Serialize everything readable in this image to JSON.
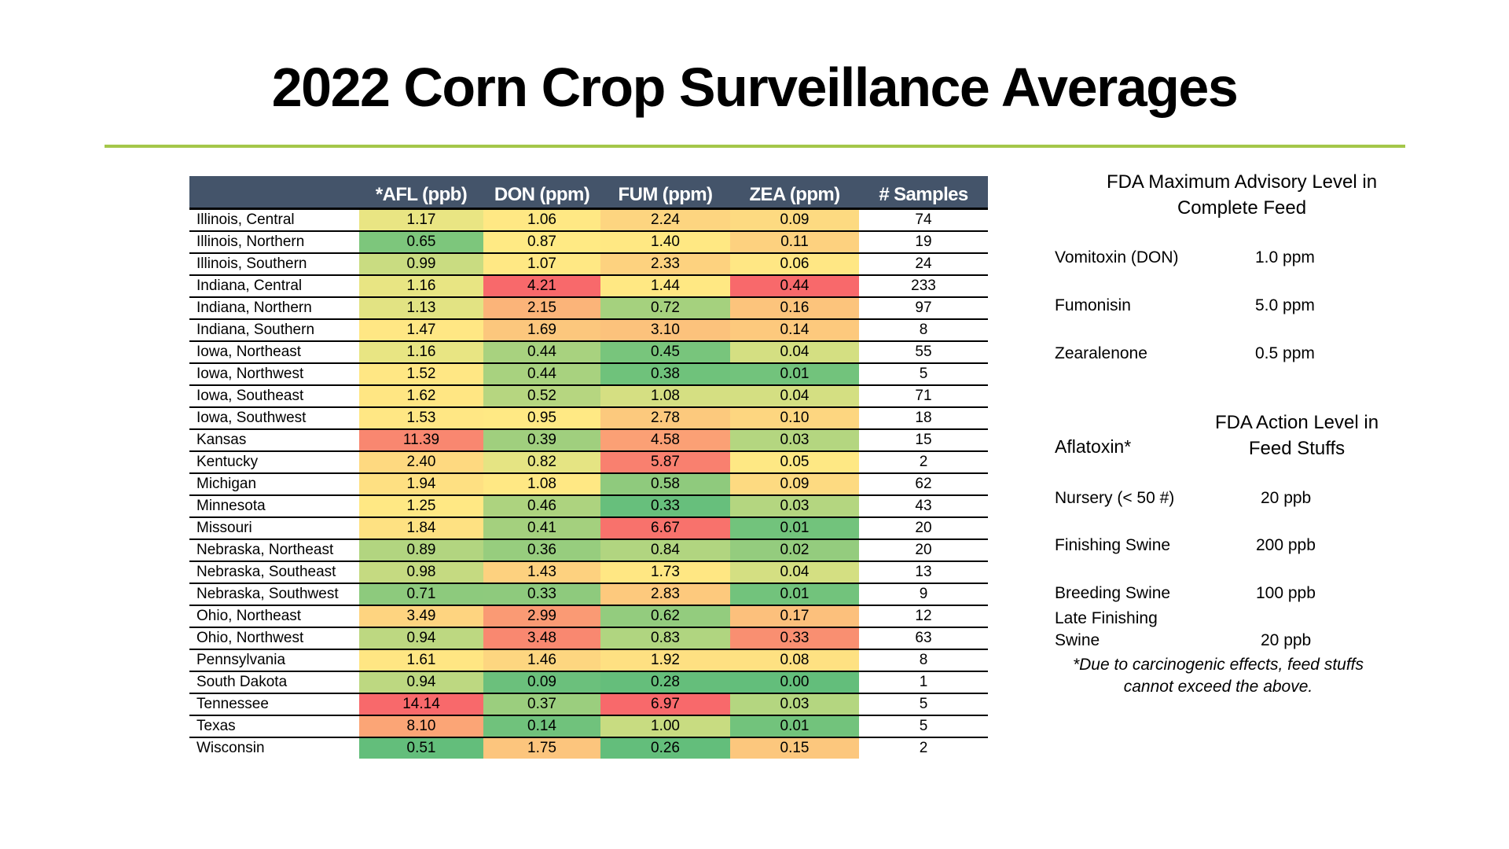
{
  "title": "2022 Corn Crop Surveillance Averages",
  "colors": {
    "accent_line": "#A4C74A",
    "header_bg": "#44546A"
  },
  "table": {
    "headers": [
      "",
      "*AFL (ppb)",
      "DON (ppm)",
      "FUM (ppm)",
      "ZEA (ppm)",
      "# Samples"
    ],
    "rows": [
      {
        "region": "Illinois, Central",
        "afl": "1.17",
        "don": "1.06",
        "fum": "2.24",
        "zea": "0.09",
        "samples": "74",
        "colors": [
          "#E9E583",
          "#FFE884",
          "#FDD580",
          "#FDDA81"
        ]
      },
      {
        "region": "Illinois, Northern",
        "afl": "0.65",
        "don": "0.87",
        "fum": "1.40",
        "zea": "0.11",
        "samples": "19",
        "colors": [
          "#7DC67C",
          "#FFEA84",
          "#FFE883",
          "#FDD17F"
        ]
      },
      {
        "region": "Illinois, Southern",
        "afl": "0.99",
        "don": "1.07",
        "fum": "2.33",
        "zea": "0.06",
        "samples": "24",
        "colors": [
          "#C9DC81",
          "#FFE884",
          "#FDD27F",
          "#FFE784"
        ]
      },
      {
        "region": "Indiana, Central",
        "afl": "1.16",
        "don": "4.21",
        "fum": "1.44",
        "zea": "0.44",
        "samples": "233",
        "colors": [
          "#E8E583",
          "#F8696B",
          "#FFE883",
          "#F8696B"
        ]
      },
      {
        "region": "Indiana, Northern",
        "afl": "1.13",
        "don": "2.15",
        "fum": "0.72",
        "zea": "0.16",
        "samples": "97",
        "colors": [
          "#E2E383",
          "#FBB479",
          "#A5D17E",
          "#FCC47C"
        ]
      },
      {
        "region": "Indiana, Southern",
        "afl": "1.47",
        "don": "1.69",
        "fum": "3.10",
        "zea": "0.14",
        "samples": "8",
        "colors": [
          "#FFE784",
          "#FCC77D",
          "#FCC27C",
          "#FDC97D"
        ]
      },
      {
        "region": "Iowa, Northeast",
        "afl": "1.16",
        "don": "0.44",
        "fum": "0.45",
        "zea": "0.04",
        "samples": "55",
        "colors": [
          "#E8E583",
          "#A8D27F",
          "#78C57C",
          "#D4DF82"
        ]
      },
      {
        "region": "Iowa, Northwest",
        "afl": "1.52",
        "don": "0.44",
        "fum": "0.38",
        "zea": "0.01",
        "samples": "5",
        "colors": [
          "#FFE784",
          "#A8D27F",
          "#6FC27B",
          "#72C37C"
        ]
      },
      {
        "region": "Iowa, Southeast",
        "afl": "1.62",
        "don": "0.52",
        "fum": "1.08",
        "zea": "0.04",
        "samples": "71",
        "colors": [
          "#FFE683",
          "#B6D680",
          "#D5DF82",
          "#D4DF82"
        ]
      },
      {
        "region": "Iowa, Southwest",
        "afl": "1.53",
        "don": "0.95",
        "fum": "2.78",
        "zea": "0.10",
        "samples": "18",
        "colors": [
          "#FFE784",
          "#FFE984",
          "#FCC97D",
          "#FDD680"
        ]
      },
      {
        "region": "Kansas",
        "afl": "11.39",
        "don": "0.39",
        "fum": "4.58",
        "zea": "0.03",
        "samples": "15",
        "colors": [
          "#F98770",
          "#A0CF7E",
          "#FBA075",
          "#B4D680"
        ]
      },
      {
        "region": "Kentucky",
        "afl": "2.40",
        "don": "0.82",
        "fum": "5.87",
        "zea": "0.05",
        "samples": "2",
        "colors": [
          "#FED980",
          "#E5E483",
          "#F9806F",
          "#FEE884"
        ]
      },
      {
        "region": "Michigan",
        "afl": "1.94",
        "don": "1.08",
        "fum": "0.58",
        "zea": "0.09",
        "samples": "62",
        "colors": [
          "#FEE082",
          "#FFE884",
          "#8FCA7D",
          "#FDDA81"
        ]
      },
      {
        "region": "Minnesota",
        "afl": "1.25",
        "don": "0.46",
        "fum": "0.33",
        "zea": "0.03",
        "samples": "43",
        "colors": [
          "#FFE884",
          "#ADD37F",
          "#67BF7C",
          "#B4D680"
        ]
      },
      {
        "region": "Missouri",
        "afl": "1.84",
        "don": "0.41",
        "fum": "6.67",
        "zea": "0.01",
        "samples": "20",
        "colors": [
          "#FEE182",
          "#A4D07E",
          "#F8726C",
          "#72C37C"
        ]
      },
      {
        "region": "Nebraska, Northeast",
        "afl": "0.89",
        "don": "0.36",
        "fum": "0.84",
        "zea": "0.02",
        "samples": "20",
        "colors": [
          "#B2D580",
          "#97CD7E",
          "#B1D580",
          "#94CC7E"
        ]
      },
      {
        "region": "Nebraska, Southeast",
        "afl": "0.98",
        "don": "1.43",
        "fum": "1.73",
        "zea": "0.04",
        "samples": "13",
        "colors": [
          "#C5DA81",
          "#FDD17F",
          "#FFE783",
          "#D4DF82"
        ]
      },
      {
        "region": "Nebraska, Southwest",
        "afl": "0.71",
        "don": "0.33",
        "fum": "2.83",
        "zea": "0.01",
        "samples": "9",
        "colors": [
          "#8DCA7D",
          "#8ECA7D",
          "#FDC97D",
          "#72C37C"
        ]
      },
      {
        "region": "Ohio, Northeast",
        "afl": "3.49",
        "don": "2.99",
        "fum": "0.62",
        "zea": "0.17",
        "samples": "12",
        "colors": [
          "#FED480",
          "#FA9A74",
          "#93CC7E",
          "#FCC07C"
        ]
      },
      {
        "region": "Ohio, Northwest",
        "afl": "0.94",
        "don": "3.48",
        "fum": "0.83",
        "zea": "0.33",
        "samples": "63",
        "colors": [
          "#BDD881",
          "#F98870",
          "#B0D580",
          "#F98F71"
        ]
      },
      {
        "region": "Pennsylvania",
        "afl": "1.61",
        "don": "1.46",
        "fum": "1.92",
        "zea": "0.08",
        "samples": "8",
        "colors": [
          "#FFE683",
          "#FDD680",
          "#FEE082",
          "#FEE182"
        ]
      },
      {
        "region": "South Dakota",
        "afl": "0.94",
        "don": "0.09",
        "fum": "0.28",
        "zea": "0.00",
        "samples": "1",
        "colors": [
          "#BDD881",
          "#6BC07C",
          "#65BE7B",
          "#63BE7B"
        ]
      },
      {
        "region": "Tennessee",
        "afl": "14.14",
        "don": "0.37",
        "fum": "6.97",
        "zea": "0.03",
        "samples": "5",
        "colors": [
          "#F8696B",
          "#9BCE7E",
          "#F8696B",
          "#B4D680"
        ]
      },
      {
        "region": "Texas",
        "afl": "8.10",
        "don": "0.14",
        "fum": "1.00",
        "zea": "0.01",
        "samples": "5",
        "colors": [
          "#FBA576",
          "#70C27C",
          "#C8DC81",
          "#72C37C"
        ]
      },
      {
        "region": "Wisconsin",
        "afl": "0.51",
        "don": "1.75",
        "fum": "0.26",
        "zea": "0.15",
        "samples": "2",
        "colors": [
          "#63BE7B",
          "#FCC57D",
          "#63BE7B",
          "#FCC77D"
        ]
      }
    ]
  },
  "advisory": {
    "title_line1": "FDA Maximum Advisory Level in",
    "title_line2": "Complete Feed",
    "items": [
      {
        "label": "Vomitoxin (DON)",
        "value": "1.0 ppm"
      },
      {
        "label": "Fumonisin",
        "value": "5.0 ppm"
      },
      {
        "label": "Zearalenone",
        "value": "0.5 ppm"
      }
    ]
  },
  "action": {
    "aflatoxin_label": "Aflatoxin*",
    "title_line1": "FDA Action Level in",
    "title_line2": "Feed Stuffs",
    "items": [
      {
        "label": "Nursery (< 50 #)",
        "value": "20 ppb"
      },
      {
        "label": "Finishing Swine",
        "value": "200 ppb"
      },
      {
        "label": "Breeding Swine",
        "value": "100 ppb"
      },
      {
        "label_line1": "Late Finishing",
        "label_line2": "Swine",
        "value": "20 ppb"
      }
    ],
    "note_line1": "*Due to carcinogenic effects, feed stuffs",
    "note_line2": "cannot exceed the above."
  }
}
